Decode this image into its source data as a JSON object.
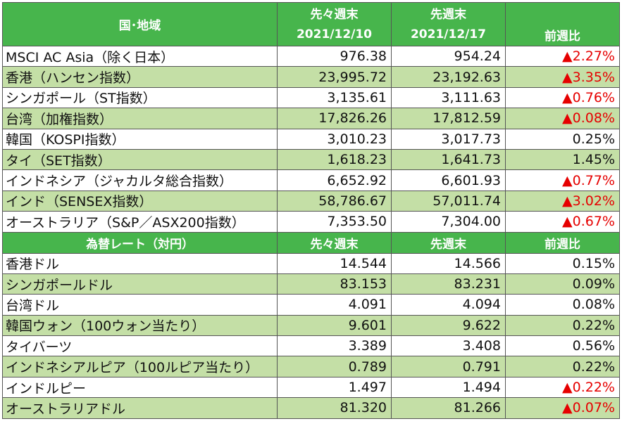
{
  "table1": {
    "header": {
      "region": "国･地域",
      "prev_prev_week_label": "先々週末",
      "prev_prev_week_date": "2021/12/10",
      "prev_week_label": "先週末",
      "prev_week_date": "2021/12/17",
      "change_label": "前週比"
    },
    "rows": [
      {
        "name": "MSCI AC Asia（除く日本）",
        "v1": "976.38",
        "v2": "954.24",
        "change": "▲2.27%",
        "down": true
      },
      {
        "name": "香港（ハンセン指数）",
        "v1": "23,995.72",
        "v2": "23,192.63",
        "change": "▲3.35%",
        "down": true
      },
      {
        "name": "シンガポール（ST指数）",
        "v1": "3,135.61",
        "v2": "3,111.63",
        "change": "▲0.76%",
        "down": true
      },
      {
        "name": "台湾（加権指数）",
        "v1": "17,826.26",
        "v2": "17,812.59",
        "change": "▲0.08%",
        "down": true
      },
      {
        "name": "韓国（KOSPI指数）",
        "v1": "3,010.23",
        "v2": "3,017.73",
        "change": "0.25%",
        "down": false
      },
      {
        "name": "タイ（SET指数）",
        "v1": "1,618.23",
        "v2": "1,641.73",
        "change": "1.45%",
        "down": false
      },
      {
        "name": "インドネシア（ジャカルタ総合指数）",
        "v1": "6,652.92",
        "v2": "6,601.93",
        "change": "▲0.77%",
        "down": true
      },
      {
        "name": "インド（SENSEX指数）",
        "v1": "58,786.67",
        "v2": "57,011.74",
        "change": "▲3.02%",
        "down": true
      },
      {
        "name": "オーストラリア（S&P／ASX200指数）",
        "v1": "7,353.50",
        "v2": "7,304.00",
        "change": "▲0.67%",
        "down": true
      }
    ]
  },
  "table2": {
    "header": {
      "title": "為替レート（対円）",
      "prev_prev_week_label": "先々週末",
      "prev_week_label": "先週末",
      "change_label": "前週比"
    },
    "rows": [
      {
        "name": "香港ドル",
        "v1": "14.544",
        "v2": "14.566",
        "change": "0.15%",
        "down": false
      },
      {
        "name": "シンガポールドル",
        "v1": "83.153",
        "v2": "83.231",
        "change": "0.09%",
        "down": false
      },
      {
        "name": "台湾ドル",
        "v1": "4.091",
        "v2": "4.094",
        "change": "0.08%",
        "down": false
      },
      {
        "name": "韓国ウォン（100ウォン当たり）",
        "v1": "9.601",
        "v2": "9.622",
        "change": "0.22%",
        "down": false
      },
      {
        "name": "タイバーツ",
        "v1": "3.389",
        "v2": "3.408",
        "change": "0.56%",
        "down": false
      },
      {
        "name": "インドネシアルピア（100ルピア当たり）",
        "v1": "0.789",
        "v2": "0.791",
        "change": "0.22%",
        "down": false
      },
      {
        "name": "インドルピー",
        "v1": "1.497",
        "v2": "1.494",
        "change": "▲0.22%",
        "down": true
      },
      {
        "name": "オーストラリアドル",
        "v1": "81.320",
        "v2": "81.266",
        "change": "▲0.07%",
        "down": true
      }
    ]
  },
  "colors": {
    "header_bg": "#47b54c",
    "row_shade": "#c4dfa6",
    "down": "#e60000"
  }
}
